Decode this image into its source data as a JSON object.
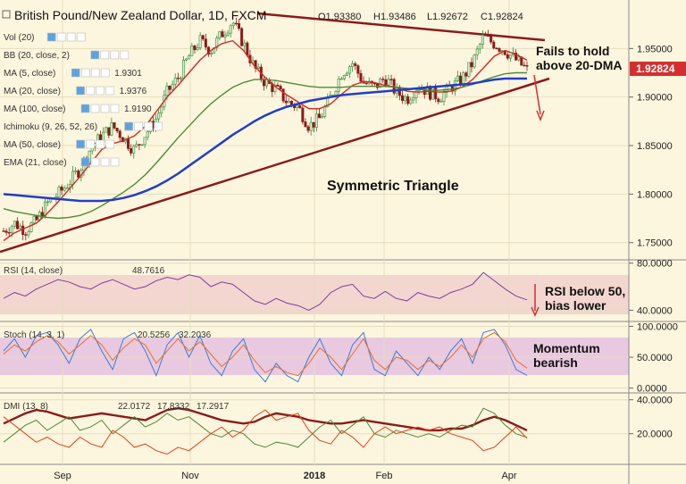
{
  "header": {
    "title": "British Pound/New Zealand Dollar, 1D, FXCM",
    "open": "O1.93380",
    "high": "H1.93486",
    "low": "L1.92672",
    "close": "C1.92824"
  },
  "indicators": [
    {
      "label": "Vol (20)",
      "value": ""
    },
    {
      "label": "BB (20, close, 2)",
      "value": ""
    },
    {
      "label": "MA (5, close)",
      "value": "1.9301",
      "color": "#c0392b"
    },
    {
      "label": "MA (20, close)",
      "value": "1.9376",
      "color": "#c0392b"
    },
    {
      "label": "MA (100, close)",
      "value": "1.9190",
      "color": "#1f3ec9"
    },
    {
      "label": "Ichimoku (9, 26, 52, 26)",
      "value": ""
    },
    {
      "label": "MA (50, close)",
      "value": ""
    },
    {
      "label": "EMA (21, close)",
      "value": ""
    }
  ],
  "price_badge": "1.92824",
  "annotations": {
    "fail_line1": "Fails to hold",
    "fail_line2": "above 20-DMA",
    "triangle": "Symmetric Triangle",
    "rsi_line1": "RSI below 50,",
    "rsi_line2": "bias lower",
    "stoch_line1": "Momentum",
    "stoch_line2": "bearish"
  },
  "panels": {
    "rsi": {
      "label": "RSI (14, close)",
      "value": "48.7616"
    },
    "stoch": {
      "label": "Stoch (14, 3, 1)",
      "value1": "20.5256",
      "value2": "32.2036"
    },
    "dmi": {
      "label": "DMI (13, 8)",
      "value1": "22.0172",
      "value2": "17.8332",
      "value3": "17.2917"
    }
  },
  "x_axis": [
    "Sep",
    "Nov",
    "2018",
    "Feb",
    "Apr"
  ],
  "colors": {
    "background": "#fdf6de",
    "badge": "#d32f2f",
    "trend": "#8b1a1a",
    "ma100": "#1f3ec9",
    "ma20": "#d62728",
    "ma50": "#4f8a3a"
  },
  "chart_data": [
    {
      "type": "candlestick",
      "title": "British Pound/New Zealand Dollar, 1D, FXCM",
      "y_ticks": [
        1.75,
        1.8,
        1.85,
        1.9,
        1.95
      ],
      "y_tick_labels": [
        "1.75000",
        "1.80000",
        "1.85000",
        "1.90000",
        "1.95000"
      ],
      "ylim": [
        1.735,
        2.0
      ],
      "x_ticks": [
        "Sep",
        "Nov",
        "2018",
        "Feb",
        "Apr"
      ],
      "close_path": [
        1.762,
        1.77,
        1.763,
        1.772,
        1.79,
        1.8,
        1.812,
        1.826,
        1.848,
        1.86,
        1.87,
        1.858,
        1.845,
        1.862,
        1.878,
        1.905,
        1.92,
        1.942,
        1.958,
        1.948,
        1.965,
        1.978,
        1.955,
        1.93,
        1.915,
        1.908,
        1.895,
        1.89,
        1.87,
        1.878,
        1.9,
        1.925,
        1.935,
        1.915,
        1.91,
        1.92,
        1.905,
        1.898,
        1.912,
        1.905,
        1.9,
        1.91,
        1.918,
        1.935,
        1.962,
        1.955,
        1.948,
        1.938,
        1.928
      ],
      "series": [
        {
          "name": "MA (20, close)",
          "values": [
            1.752,
            1.76,
            1.765,
            1.77,
            1.78,
            1.792,
            1.805,
            1.818,
            1.832,
            1.846,
            1.852,
            1.855,
            1.86,
            1.87,
            1.885,
            1.9,
            1.912,
            1.925,
            1.938,
            1.948,
            1.955,
            1.958,
            1.948,
            1.932,
            1.92,
            1.91,
            1.902,
            1.895,
            1.888,
            1.888,
            1.893,
            1.903,
            1.912,
            1.916,
            1.915,
            1.912,
            1.91,
            1.906,
            1.905,
            1.906,
            1.905,
            1.906,
            1.91,
            1.918,
            1.93,
            1.942,
            1.948,
            1.944,
            1.938
          ]
        },
        {
          "name": "MA (50, close)",
          "values": [
            1.785,
            1.782,
            1.78,
            1.778,
            1.776,
            1.775,
            1.776,
            1.778,
            1.782,
            1.788,
            1.795,
            1.802,
            1.81,
            1.82,
            1.832,
            1.845,
            1.858,
            1.87,
            1.882,
            1.893,
            1.902,
            1.91,
            1.915,
            1.918,
            1.918,
            1.917,
            1.915,
            1.913,
            1.911,
            1.91,
            1.91,
            1.91,
            1.911,
            1.911,
            1.911,
            1.911,
            1.91,
            1.909,
            1.908,
            1.907,
            1.907,
            1.908,
            1.91,
            1.913,
            1.917,
            1.921,
            1.924,
            1.925,
            1.925
          ]
        },
        {
          "name": "MA (100, close)",
          "values": [
            1.8,
            1.799,
            1.798,
            1.797,
            1.796,
            1.795,
            1.794,
            1.793,
            1.793,
            1.793,
            1.794,
            1.796,
            1.799,
            1.803,
            1.808,
            1.814,
            1.821,
            1.829,
            1.837,
            1.845,
            1.853,
            1.861,
            1.868,
            1.875,
            1.881,
            1.886,
            1.89,
            1.893,
            1.896,
            1.898,
            1.9,
            1.902,
            1.903,
            1.904,
            1.905,
            1.906,
            1.907,
            1.908,
            1.909,
            1.91,
            1.911,
            1.912,
            1.913,
            1.914,
            1.916,
            1.918,
            1.919,
            1.919,
            1.919
          ]
        }
      ],
      "annotations": [
        "Fails to hold above 20-DMA",
        "Symmetric Triangle"
      ]
    },
    {
      "type": "line",
      "title": "RSI (14, close)",
      "y_ticks": [
        40,
        80
      ],
      "y_tick_labels": [
        "40.0000",
        "80.0000"
      ],
      "ylim": [
        32,
        82
      ],
      "series": [
        {
          "name": "RSI (14, close)",
          "values": [
            50,
            55,
            52,
            58,
            62,
            66,
            64,
            60,
            58,
            63,
            66,
            62,
            58,
            60,
            65,
            68,
            66,
            70,
            68,
            60,
            64,
            62,
            55,
            48,
            45,
            50,
            46,
            44,
            40,
            45,
            55,
            60,
            62,
            52,
            50,
            56,
            50,
            48,
            55,
            52,
            50,
            55,
            58,
            62,
            72,
            65,
            58,
            52,
            48.8
          ]
        }
      ],
      "annotations": [
        "RSI below 50, bias lower"
      ]
    },
    {
      "type": "line",
      "title": "Stoch (14, 3, 1)",
      "y_ticks": [
        0,
        50,
        100
      ],
      "y_tick_labels": [
        "0.0000",
        "50.0000",
        "100.0000"
      ],
      "ylim": [
        -5,
        105
      ],
      "series": [
        {
          "name": "%K",
          "values": [
            60,
            80,
            50,
            85,
            90,
            70,
            40,
            80,
            95,
            60,
            30,
            80,
            90,
            60,
            20,
            70,
            90,
            50,
            85,
            40,
            20,
            60,
            80,
            30,
            10,
            40,
            20,
            10,
            50,
            80,
            40,
            20,
            70,
            90,
            30,
            20,
            60,
            40,
            20,
            50,
            30,
            60,
            80,
            40,
            90,
            95,
            70,
            30,
            20.5
          ]
        },
        {
          "name": "%D",
          "values": [
            55,
            70,
            60,
            75,
            85,
            75,
            55,
            70,
            85,
            70,
            45,
            65,
            80,
            70,
            40,
            60,
            80,
            60,
            75,
            55,
            35,
            50,
            70,
            45,
            25,
            35,
            25,
            20,
            40,
            65,
            50,
            30,
            55,
            80,
            45,
            30,
            50,
            45,
            30,
            45,
            35,
            50,
            70,
            50,
            80,
            90,
            75,
            45,
            32.2
          ]
        }
      ],
      "annotations": [
        "Momentum bearish"
      ]
    },
    {
      "type": "line",
      "title": "DMI (13, 8)",
      "y_ticks": [
        20,
        40
      ],
      "y_tick_labels": [
        "20.0000",
        "40.0000"
      ],
      "ylim": [
        3,
        43
      ],
      "series": [
        {
          "name": "ADX",
          "values": [
            26,
            29,
            32,
            34,
            33,
            31,
            29,
            30,
            31,
            32,
            31,
            30,
            29,
            28,
            31,
            34,
            35,
            34,
            32,
            30,
            28,
            27,
            26,
            27,
            30,
            32,
            31,
            30,
            28,
            27,
            26,
            26,
            27,
            28,
            27,
            26,
            25,
            24,
            23,
            22,
            22,
            23,
            23,
            25,
            28,
            30,
            28,
            25,
            22
          ]
        },
        {
          "name": "+DI",
          "values": [
            15,
            20,
            25,
            28,
            22,
            26,
            30,
            22,
            24,
            28,
            20,
            25,
            30,
            24,
            27,
            32,
            28,
            30,
            25,
            20,
            18,
            22,
            20,
            14,
            12,
            15,
            14,
            12,
            18,
            24,
            28,
            20,
            25,
            30,
            20,
            18,
            22,
            20,
            18,
            20,
            18,
            22,
            25,
            24,
            35,
            32,
            25,
            20,
            17.8
          ]
        },
        {
          "name": "-DI",
          "values": [
            30,
            25,
            20,
            15,
            18,
            14,
            12,
            18,
            14,
            12,
            22,
            18,
            12,
            14,
            10,
            8,
            12,
            10,
            15,
            20,
            24,
            18,
            22,
            30,
            34,
            28,
            30,
            32,
            22,
            16,
            14,
            22,
            18,
            12,
            20,
            24,
            20,
            22,
            24,
            22,
            24,
            20,
            18,
            16,
            10,
            12,
            18,
            24,
            17.3
          ]
        }
      ]
    }
  ]
}
